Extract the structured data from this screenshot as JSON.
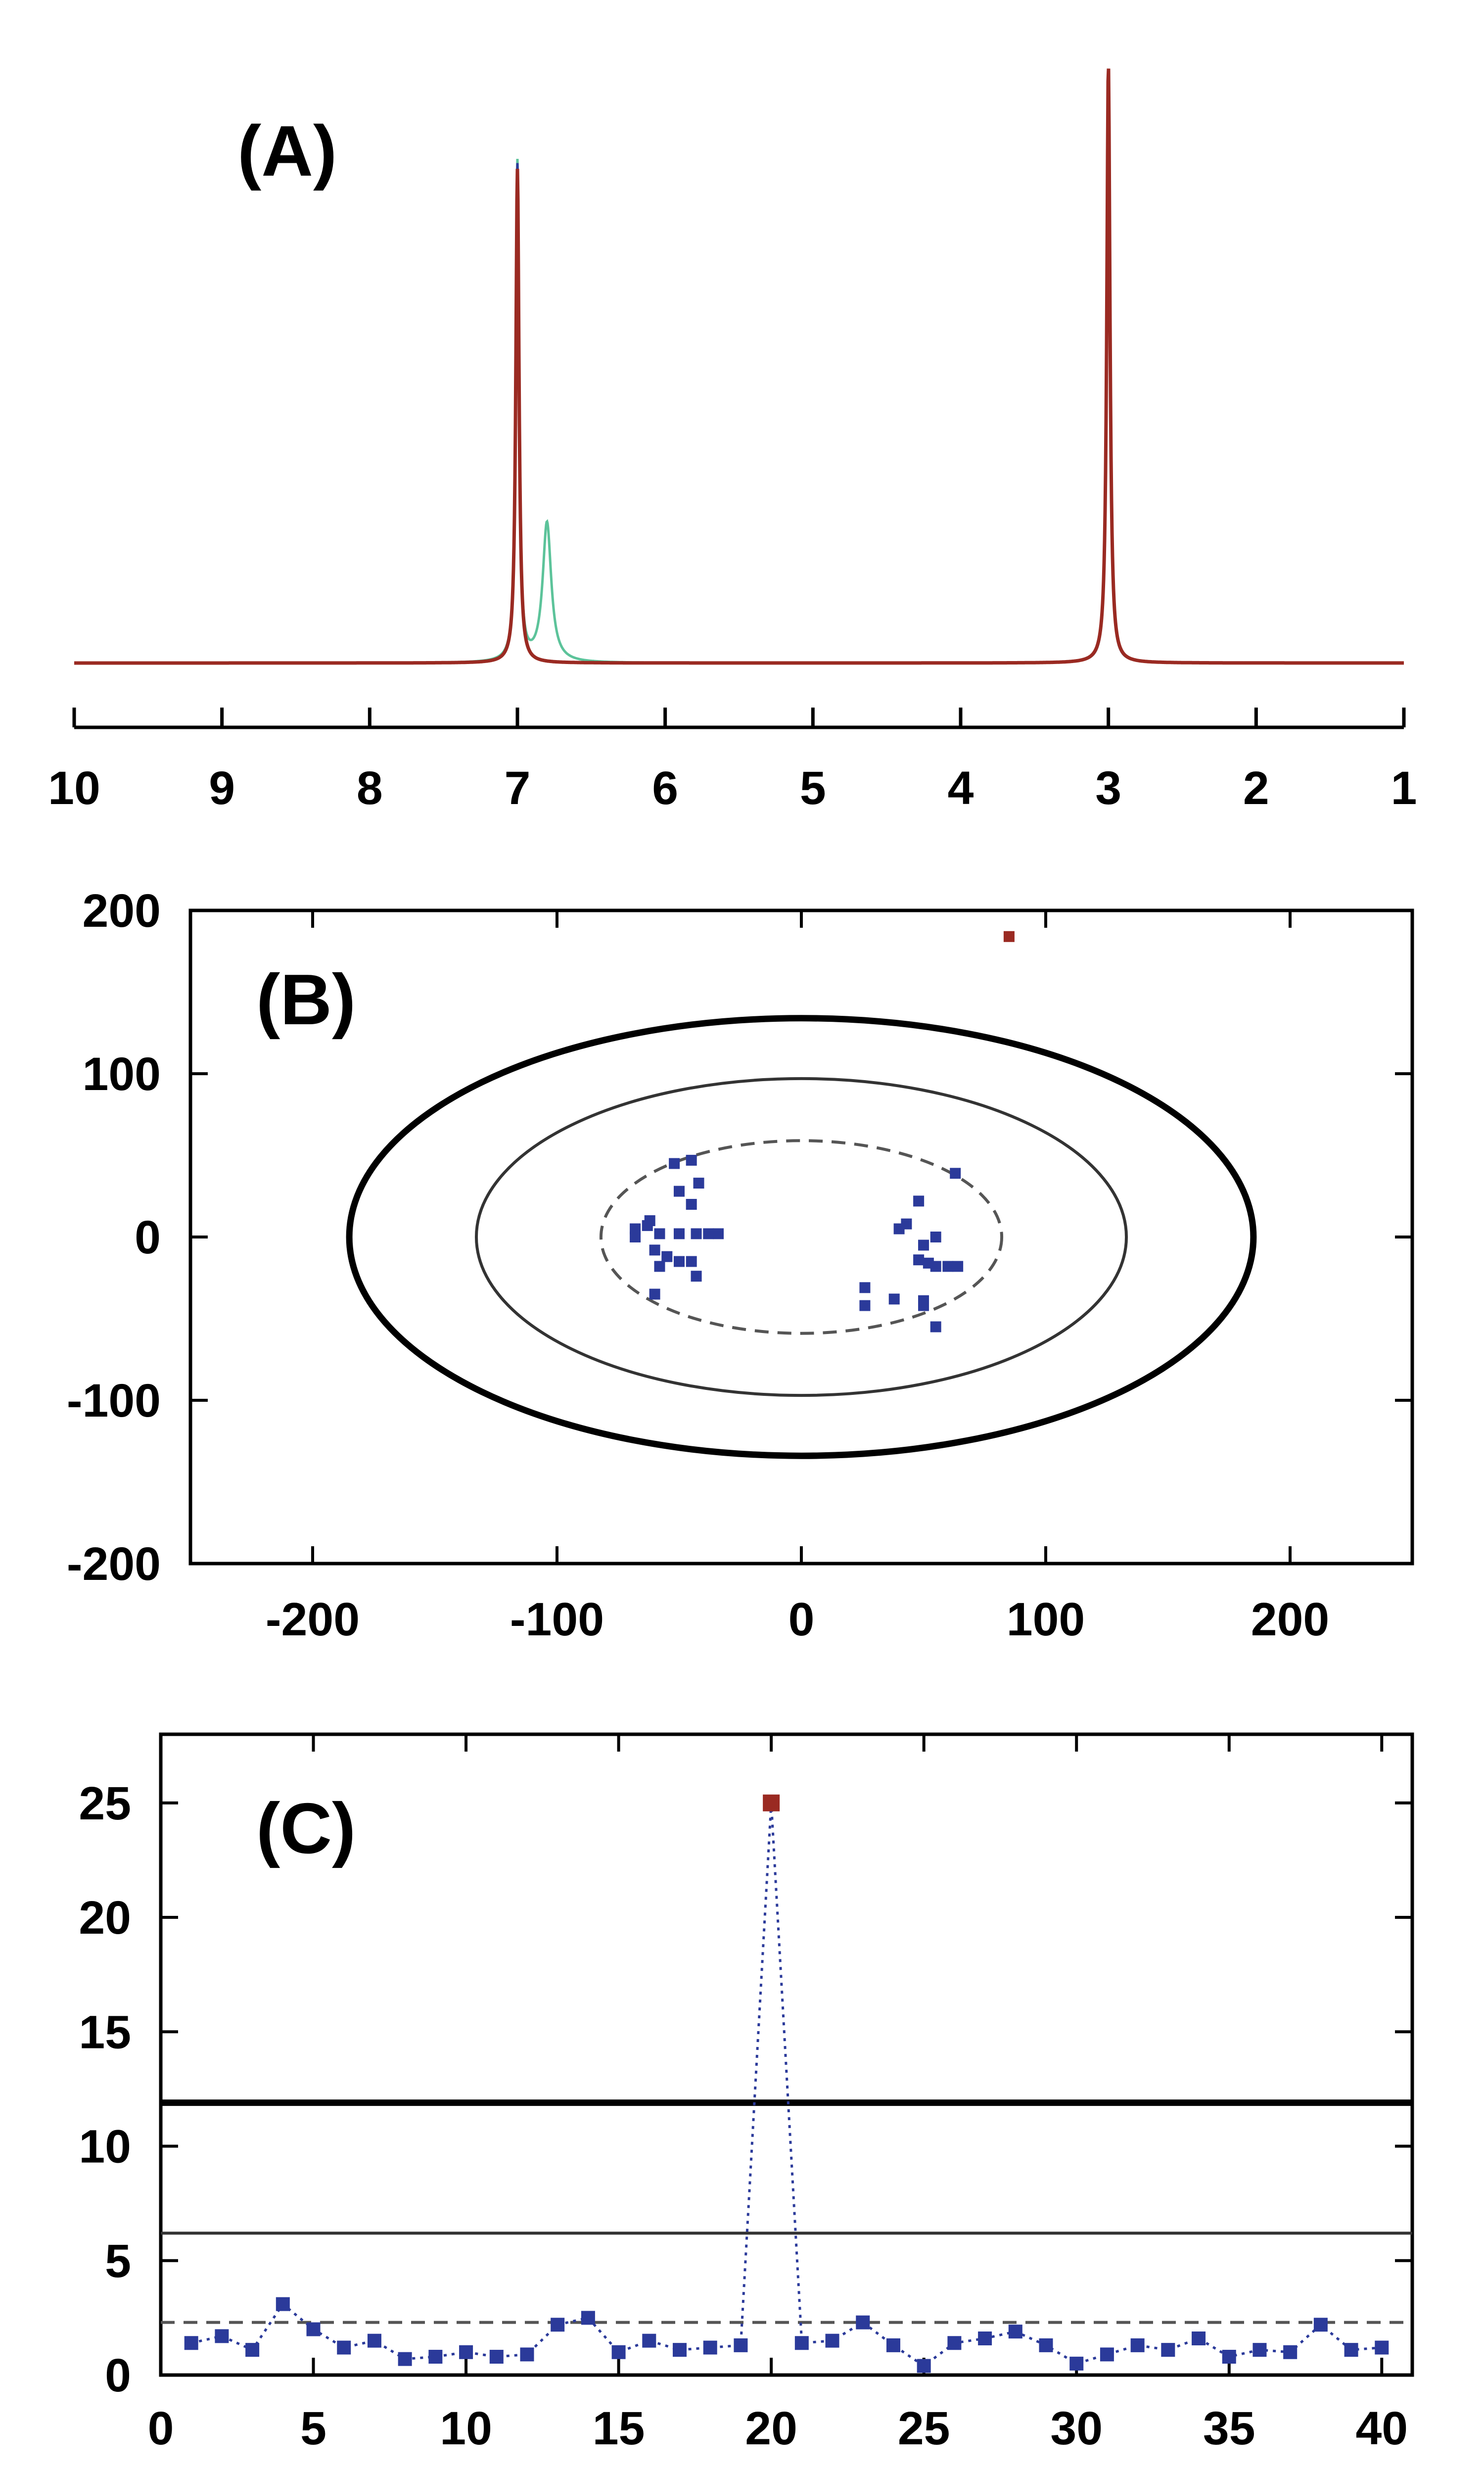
{
  "colors": {
    "red": "#9a2a22",
    "green": "#5cc39a",
    "blue": "#2b3a9a",
    "black": "#000000",
    "dark_grey": "#333333",
    "dashed_grey": "#555555"
  },
  "chart_data": [
    {
      "panel": "A",
      "type": "line",
      "panel_label": "(A)",
      "xlim": [
        10,
        1
      ],
      "x_reversed": true,
      "xticks": [
        10,
        9,
        8,
        7,
        6,
        5,
        4,
        3,
        2,
        1
      ],
      "grid": false,
      "legend": "none",
      "series": [
        {
          "color": "#5cc39a",
          "peaks": [
            {
              "center": 7.0,
              "height": 0.86,
              "width": 0.013
            },
            {
              "center": 6.8,
              "height": 0.24,
              "width": 0.035
            },
            {
              "center": 3.0,
              "height": 0.94,
              "width": 0.013
            }
          ]
        },
        {
          "color": "#2b3a9a",
          "peaks": [
            {
              "center": 7.0,
              "height": 0.86,
              "width": 0.013
            },
            {
              "center": 3.0,
              "height": 0.94,
              "width": 0.013
            }
          ]
        },
        {
          "color": "#9a2a22",
          "peaks": [
            {
              "center": 7.0,
              "height": 0.85,
              "width": 0.013
            },
            {
              "center": 3.0,
              "height": 1.03,
              "width": 0.013
            }
          ]
        }
      ]
    },
    {
      "panel": "B",
      "type": "scatter",
      "panel_label": "(B)",
      "xlim": [
        -250,
        250
      ],
      "ylim": [
        -200,
        200
      ],
      "xticks": [
        -200,
        -100,
        0,
        100,
        200
      ],
      "yticks": [
        -200,
        -100,
        0,
        100,
        200
      ],
      "grid": false,
      "legend": "none",
      "ellipses": [
        {
          "style": "thick",
          "rx": 185,
          "ry": 134
        },
        {
          "style": "solid",
          "rx": 133,
          "ry": 97
        },
        {
          "style": "dashed",
          "rx": 82,
          "ry": 59
        }
      ],
      "points": [
        [
          -52,
          45
        ],
        [
          -45,
          47
        ],
        [
          -50,
          28
        ],
        [
          -42,
          33
        ],
        [
          -45,
          20
        ],
        [
          -62,
          10
        ],
        [
          -63,
          7
        ],
        [
          -68,
          5
        ],
        [
          -68,
          0
        ],
        [
          -58,
          2
        ],
        [
          -50,
          2
        ],
        [
          -43,
          2
        ],
        [
          -38,
          2
        ],
        [
          -34,
          2
        ],
        [
          -60,
          -8
        ],
        [
          -55,
          -12
        ],
        [
          -58,
          -18
        ],
        [
          -50,
          -15
        ],
        [
          -45,
          -15
        ],
        [
          -60,
          -35
        ],
        [
          -43,
          -24
        ],
        [
          63,
          39
        ],
        [
          48,
          22
        ],
        [
          43,
          8
        ],
        [
          40,
          5
        ],
        [
          50,
          -5
        ],
        [
          55,
          0
        ],
        [
          48,
          -14
        ],
        [
          52,
          -16
        ],
        [
          55,
          -18
        ],
        [
          60,
          -18
        ],
        [
          64,
          -18
        ],
        [
          26,
          -31
        ],
        [
          26,
          -42
        ],
        [
          38,
          -38
        ],
        [
          50,
          -42
        ],
        [
          55,
          -55
        ],
        [
          50,
          -39
        ]
      ],
      "outlier": [
        85,
        184
      ]
    },
    {
      "panel": "C",
      "type": "line",
      "panel_label": "(C)",
      "xlim": [
        0,
        41
      ],
      "ylim": [
        0,
        28
      ],
      "xticks": [
        0,
        5,
        10,
        15,
        20,
        25,
        30,
        35,
        40
      ],
      "yticks": [
        0,
        5,
        10,
        15,
        20,
        25
      ],
      "grid": false,
      "legend": "none",
      "hlines": [
        {
          "style": "thick",
          "y": 11.9
        },
        {
          "style": "solid",
          "y": 6.2
        },
        {
          "style": "dashed",
          "y": 2.3
        }
      ],
      "x": [
        1,
        2,
        3,
        4,
        5,
        6,
        7,
        8,
        9,
        10,
        11,
        12,
        13,
        14,
        15,
        16,
        17,
        18,
        19,
        20,
        21,
        22,
        23,
        24,
        25,
        26,
        27,
        28,
        29,
        30,
        31,
        32,
        33,
        34,
        35,
        36,
        37,
        38,
        39,
        40
      ],
      "y": [
        1.4,
        1.7,
        1.1,
        3.1,
        2.0,
        1.2,
        1.5,
        0.7,
        0.8,
        1.0,
        0.8,
        0.9,
        2.2,
        2.5,
        1.0,
        1.5,
        1.1,
        1.2,
        1.3,
        25.0,
        1.4,
        1.5,
        2.3,
        1.3,
        0.4,
        1.4,
        1.6,
        1.9,
        1.3,
        0.5,
        0.9,
        1.3,
        1.1,
        1.6,
        0.8,
        1.1,
        1.0,
        2.2,
        1.1,
        1.2
      ],
      "highlight_x": 20
    }
  ]
}
